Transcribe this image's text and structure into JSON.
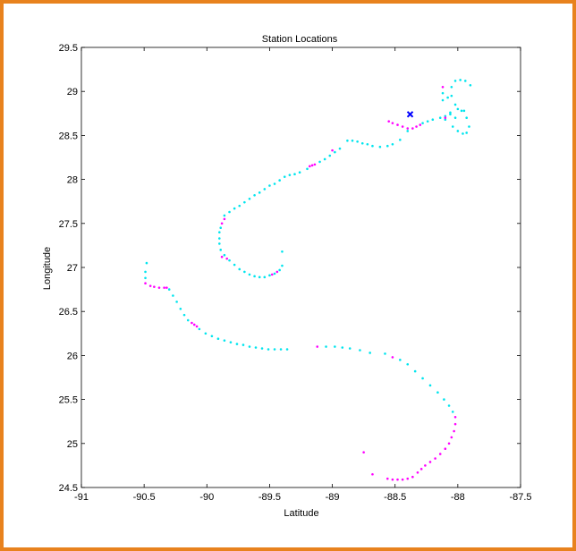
{
  "chart_data": {
    "type": "scatter",
    "title": "Station Locations",
    "xlabel": "Latitude",
    "ylabel": "Longitude",
    "xlim": [
      -91,
      -87.5
    ],
    "ylim": [
      24.5,
      29.5
    ],
    "xticks": [
      -91,
      -90.5,
      -90,
      -89.5,
      -89,
      -88.5,
      -88,
      -87.5
    ],
    "yticks": [
      24.5,
      25,
      25.5,
      26,
      26.5,
      27,
      27.5,
      28,
      28.5,
      29,
      29.5
    ],
    "xtick_labels": [
      "-91",
      "-90.5",
      "-90",
      "-89.5",
      "-89",
      "-88.5",
      "-88",
      "-87.5"
    ],
    "ytick_labels": [
      "24.5",
      "25",
      "25.5",
      "26",
      "26.5",
      "27",
      "27.5",
      "28",
      "28.5",
      "29",
      "29.5"
    ],
    "grid": false,
    "colors": {
      "cyan": "#00e5ee",
      "magenta": "#ff00ff",
      "marker": "#0000ff",
      "frame": "#e8821e"
    },
    "series": [
      {
        "color": "cyan",
        "points": [
          [
            -88.28,
            28.64
          ],
          [
            -88.24,
            28.66
          ],
          [
            -88.2,
            28.68
          ],
          [
            -88.14,
            28.7
          ],
          [
            -88.1,
            28.72
          ],
          [
            -88.06,
            28.74
          ],
          [
            -88.02,
            28.7
          ],
          [
            -88.04,
            28.6
          ],
          [
            -88.0,
            28.55
          ],
          [
            -87.96,
            28.52
          ],
          [
            -87.93,
            28.53
          ],
          [
            -87.91,
            28.6
          ],
          [
            -87.93,
            28.7
          ],
          [
            -87.97,
            28.78
          ],
          [
            -88.02,
            28.85
          ],
          [
            -88.05,
            28.95
          ],
          [
            -88.05,
            29.05
          ],
          [
            -88.02,
            29.12
          ],
          [
            -87.98,
            29.13
          ],
          [
            -87.94,
            29.12
          ],
          [
            -87.9,
            29.07
          ],
          [
            -87.95,
            28.78
          ],
          [
            -88.0,
            28.8
          ],
          [
            -88.06,
            28.76
          ],
          [
            -88.1,
            28.68
          ],
          [
            -88.12,
            28.9
          ],
          [
            -88.12,
            28.98
          ],
          [
            -88.08,
            28.93
          ],
          [
            -88.4,
            28.55
          ],
          [
            -88.46,
            28.45
          ],
          [
            -88.52,
            28.4
          ],
          [
            -88.56,
            28.38
          ],
          [
            -88.62,
            28.37
          ],
          [
            -88.68,
            28.38
          ],
          [
            -88.72,
            28.4
          ],
          [
            -88.76,
            28.41
          ],
          [
            -88.8,
            28.43
          ],
          [
            -88.84,
            28.44
          ],
          [
            -88.88,
            28.44
          ],
          [
            -88.94,
            28.35
          ],
          [
            -88.98,
            28.31
          ],
          [
            -89.02,
            28.27
          ],
          [
            -89.06,
            28.23
          ],
          [
            -89.1,
            28.2
          ],
          [
            -89.2,
            28.12
          ],
          [
            -89.26,
            28.08
          ],
          [
            -89.3,
            28.06
          ],
          [
            -89.34,
            28.05
          ],
          [
            -89.38,
            28.03
          ],
          [
            -89.42,
            27.99
          ],
          [
            -89.46,
            27.95
          ],
          [
            -89.5,
            27.93
          ],
          [
            -89.54,
            27.89
          ],
          [
            -89.58,
            27.85
          ],
          [
            -89.62,
            27.82
          ],
          [
            -89.66,
            27.78
          ],
          [
            -89.7,
            27.74
          ],
          [
            -89.74,
            27.7
          ],
          [
            -89.78,
            27.67
          ],
          [
            -89.82,
            27.63
          ],
          [
            -89.86,
            27.59
          ],
          [
            -89.89,
            27.45
          ],
          [
            -89.9,
            27.4
          ],
          [
            -89.9,
            27.33
          ],
          [
            -89.9,
            27.27
          ],
          [
            -89.89,
            27.2
          ],
          [
            -89.86,
            27.14
          ],
          [
            -89.82,
            27.08
          ],
          [
            -89.78,
            27.03
          ],
          [
            -89.74,
            26.98
          ],
          [
            -89.7,
            26.95
          ],
          [
            -89.66,
            26.92
          ],
          [
            -89.62,
            26.9
          ],
          [
            -89.58,
            26.89
          ],
          [
            -89.54,
            26.89
          ],
          [
            -89.5,
            26.91
          ],
          [
            -89.46,
            26.93
          ],
          [
            -89.42,
            26.97
          ],
          [
            -89.4,
            27.02
          ],
          [
            -89.4,
            27.18
          ],
          [
            -90.48,
            27.05
          ],
          [
            -90.49,
            26.95
          ],
          [
            -90.49,
            26.88
          ],
          [
            -90.3,
            26.75
          ],
          [
            -90.27,
            26.68
          ],
          [
            -90.24,
            26.61
          ],
          [
            -90.21,
            26.53
          ],
          [
            -90.18,
            26.46
          ],
          [
            -90.15,
            26.4
          ],
          [
            -90.06,
            26.3
          ],
          [
            -90.01,
            26.25
          ],
          [
            -89.96,
            26.22
          ],
          [
            -89.91,
            26.19
          ],
          [
            -89.86,
            26.17
          ],
          [
            -89.81,
            26.15
          ],
          [
            -89.76,
            26.13
          ],
          [
            -89.71,
            26.12
          ],
          [
            -89.66,
            26.1
          ],
          [
            -89.61,
            26.09
          ],
          [
            -89.56,
            26.08
          ],
          [
            -89.51,
            26.07
          ],
          [
            -89.46,
            26.07
          ],
          [
            -89.41,
            26.07
          ],
          [
            -89.36,
            26.07
          ],
          [
            -89.05,
            26.1
          ],
          [
            -88.98,
            26.1
          ],
          [
            -88.92,
            26.09
          ],
          [
            -88.86,
            26.08
          ],
          [
            -88.78,
            26.06
          ],
          [
            -88.7,
            26.03
          ],
          [
            -88.58,
            26.02
          ],
          [
            -88.46,
            25.95
          ],
          [
            -88.4,
            25.9
          ],
          [
            -88.34,
            25.82
          ],
          [
            -88.28,
            25.74
          ],
          [
            -88.22,
            25.66
          ],
          [
            -88.16,
            25.58
          ],
          [
            -88.11,
            25.5
          ],
          [
            -88.07,
            25.43
          ],
          [
            -88.04,
            25.36
          ]
        ]
      },
      {
        "color": "magenta",
        "points": [
          [
            -88.55,
            28.66
          ],
          [
            -88.52,
            28.64
          ],
          [
            -88.48,
            28.62
          ],
          [
            -88.44,
            28.6
          ],
          [
            -88.4,
            28.58
          ],
          [
            -88.36,
            28.58
          ],
          [
            -88.33,
            28.6
          ],
          [
            -88.3,
            28.62
          ],
          [
            -88.12,
            29.05
          ],
          [
            -88.1,
            28.7
          ],
          [
            -89.0,
            28.33
          ],
          [
            -89.14,
            28.17
          ],
          [
            -89.16,
            28.16
          ],
          [
            -89.18,
            28.15
          ],
          [
            -89.86,
            27.55
          ],
          [
            -89.88,
            27.5
          ],
          [
            -89.88,
            27.12
          ],
          [
            -89.84,
            27.1
          ],
          [
            -89.48,
            26.92
          ],
          [
            -89.44,
            26.95
          ],
          [
            -90.49,
            26.82
          ],
          [
            -90.45,
            26.79
          ],
          [
            -90.42,
            26.78
          ],
          [
            -90.38,
            26.77
          ],
          [
            -90.34,
            26.77
          ],
          [
            -90.32,
            26.77
          ],
          [
            -90.12,
            26.37
          ],
          [
            -90.1,
            26.35
          ],
          [
            -90.08,
            26.33
          ],
          [
            -89.12,
            26.1
          ],
          [
            -88.52,
            25.98
          ],
          [
            -88.02,
            25.3
          ],
          [
            -88.02,
            25.22
          ],
          [
            -88.03,
            25.14
          ],
          [
            -88.05,
            25.07
          ],
          [
            -88.07,
            25.0
          ],
          [
            -88.1,
            24.94
          ],
          [
            -88.14,
            24.88
          ],
          [
            -88.18,
            24.83
          ],
          [
            -88.22,
            24.79
          ],
          [
            -88.26,
            24.75
          ],
          [
            -88.29,
            24.71
          ],
          [
            -88.32,
            24.67
          ],
          [
            -88.36,
            24.62
          ],
          [
            -88.4,
            24.6
          ],
          [
            -88.44,
            24.59
          ],
          [
            -88.48,
            24.59
          ],
          [
            -88.52,
            24.59
          ],
          [
            -88.56,
            24.6
          ],
          [
            -88.68,
            24.65
          ],
          [
            -88.75,
            24.9
          ]
        ]
      }
    ],
    "marker": {
      "symbol": "x",
      "color": "marker",
      "x": -88.38,
      "y": 28.74
    }
  }
}
